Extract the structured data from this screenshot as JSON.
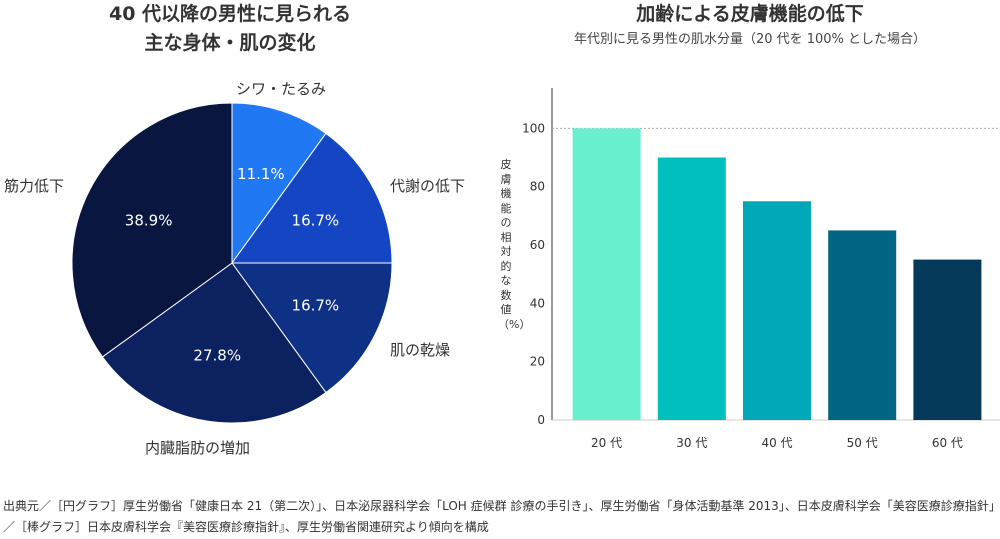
{
  "left_chart": {
    "title_line1": "40 代以降の男性に見られる",
    "title_line2": "主な身体・肌の変化"
  },
  "right_chart": {
    "title": "加齢による皮膚機能の低下",
    "subtitle": "年代別に見る男性の肌水分量（20 代を 100% とした場合）"
  },
  "source_note": "出典元／［円グラフ］厚生労働省「健康日本 21（第二次）」、日本泌尿器科学会「LOH 症候群 診療の手引き」、厚生労働省「身体活動基準 2013」、日本皮膚科学会「美容医療診療指針」／［棒グラフ］日本皮膚科学会『美容医療診療指針』、厚生労働省関連研究より傾向を構成",
  "chart_data": [
    {
      "type": "pie",
      "title": "40 代以降の男性に見られる主な身体・肌の変化",
      "slices": [
        {
          "label": "シワ・たるみ",
          "value": 11.1,
          "value_label": "11.1%",
          "color": "#2079f2"
        },
        {
          "label": "代謝の低下",
          "value": 16.7,
          "value_label": "16.7%",
          "color": "#1446c4"
        },
        {
          "label": "肌の乾燥",
          "value": 16.7,
          "value_label": "16.7%",
          "color": "#0e3186"
        },
        {
          "label": "内臓脂肪の増加",
          "value": 27.8,
          "value_label": "27.8%",
          "color": "#0c2160"
        },
        {
          "label": "筋力低下",
          "value": 38.9,
          "value_label": "38.9%",
          "color": "#081640"
        }
      ]
    },
    {
      "type": "bar",
      "title": "加齢による皮膚機能の低下",
      "subtitle": "年代別に見る男性の肌水分量（20 代を 100% とした場合）",
      "categories": [
        "20 代",
        "30 代",
        "40 代",
        "50 代",
        "60 代"
      ],
      "values": [
        100,
        90,
        75,
        65,
        55
      ],
      "colors": [
        "#68f0cc",
        "#00bfbd",
        "#01a8b8",
        "#036584",
        "#04395a"
      ],
      "ylabel": "皮膚機能の相対的な数値（%）",
      "ylim": [
        0,
        120
      ],
      "yticks": [
        0,
        20,
        40,
        60,
        80,
        100
      ],
      "reference_line": 100,
      "grid": false
    }
  ]
}
